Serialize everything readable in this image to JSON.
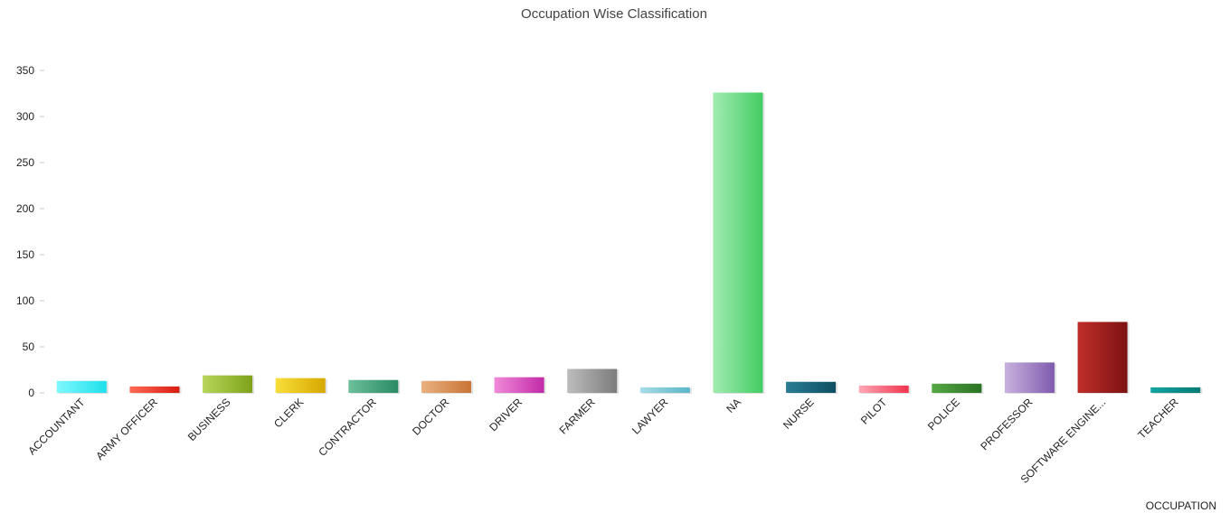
{
  "chart_data": {
    "type": "bar",
    "title": "Occupation Wise Classification",
    "xlabel": "OCCUPATION",
    "ylabel": "",
    "ylim": [
      0,
      350
    ],
    "yticks": [
      0,
      50,
      100,
      150,
      200,
      250,
      300,
      350
    ],
    "grid": false,
    "categories": [
      "ACCOUNTANT",
      "ARMY OFFICER",
      "BUSINESS",
      "CLERK",
      "CONTRACTOR",
      "DOCTOR",
      "DRIVER",
      "FARMER",
      "LAWYER",
      "NA",
      "NURSE",
      "PILOT",
      "POLICE",
      "PROFESSOR",
      "SOFTWARE ENGINE...",
      "TEACHER"
    ],
    "values": [
      13,
      7,
      19,
      16,
      14,
      13,
      17,
      26,
      6,
      326,
      12,
      8,
      10,
      33,
      77,
      6
    ],
    "colors": [
      [
        "#7ff8ff",
        "#1fe0ea"
      ],
      [
        "#ff6a55",
        "#d81c10"
      ],
      [
        "#b8d65a",
        "#7ea21a"
      ],
      [
        "#f9df3a",
        "#d6a800"
      ],
      [
        "#6cc09a",
        "#2a8a64"
      ],
      [
        "#eab182",
        "#c87434"
      ],
      [
        "#f08ad8",
        "#c22aa8"
      ],
      [
        "#bdbdbd",
        "#7c7c7c"
      ],
      [
        "#a6dde6",
        "#5ab6c6"
      ],
      [
        "#a2ecb2",
        "#42cc62"
      ],
      [
        "#2a7e94",
        "#0e4e62"
      ],
      [
        "#ffa8b6",
        "#f2344e"
      ],
      [
        "#56a844",
        "#2a7224"
      ],
      [
        "#c8b2de",
        "#7f5aae"
      ],
      [
        "#c02e2a",
        "#7c1212"
      ],
      [
        "#18a6a0",
        "#047a76"
      ]
    ]
  }
}
